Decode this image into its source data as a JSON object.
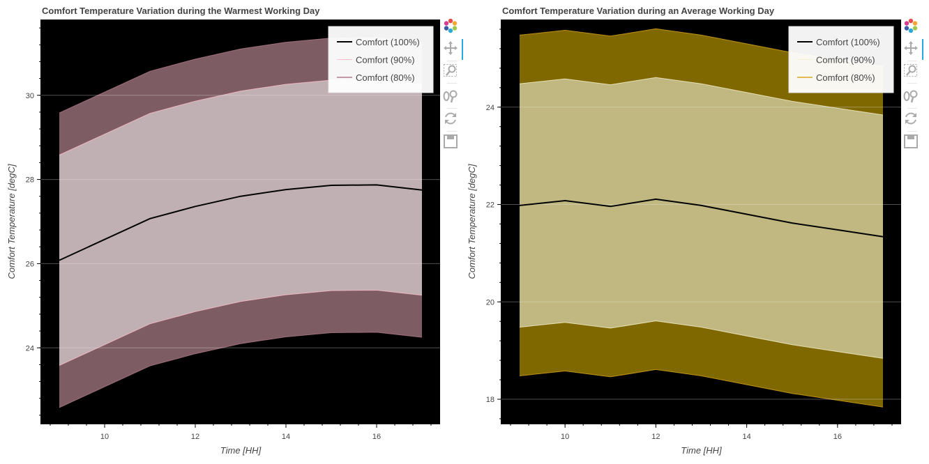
{
  "charts": [
    {
      "title": "Comfort Temperature Variation during the Warmest Working Day",
      "xlabel": "Time [HH]",
      "ylabel": "Comfort Temperature [degC]",
      "legend": [
        "Comfort (100%)",
        "Comfort (90%)",
        "Comfort (80%)"
      ]
    },
    {
      "title": "Comfort Temperature Variation during an Average Working Day",
      "xlabel": "Time [HH]",
      "ylabel": "Comfort Temperature [degC]",
      "legend": [
        "Comfort (100%)",
        "Comfort (90%)",
        "Comfort (80%)"
      ]
    }
  ],
  "toolbar_icons": [
    "bokeh-logo-icon",
    "pan-icon",
    "box-zoom-icon",
    "wheel-zoom-icon",
    "reset-icon",
    "save-icon"
  ],
  "chart_data": [
    {
      "type": "area",
      "title": "Comfort Temperature Variation during the Warmest Working Day",
      "xlabel": "Time [HH]",
      "ylabel": "Comfort Temperature [degC]",
      "xlim": [
        8.6,
        17.4
      ],
      "ylim": [
        22.2,
        31.8
      ],
      "xticks": [
        10,
        12,
        14,
        16
      ],
      "yticks": [
        24,
        26,
        28,
        30
      ],
      "grid": true,
      "legend_position": "top-right",
      "background": "#000000",
      "x": [
        9,
        11,
        12,
        13,
        14,
        15,
        16,
        17
      ],
      "series": [
        {
          "name": "Comfort (100%)",
          "color": "#000000",
          "values": [
            26.08,
            27.07,
            27.36,
            27.6,
            27.76,
            27.86,
            27.87,
            27.75
          ]
        },
        {
          "name": "Comfort (90%)",
          "color": "#ffc0cb",
          "fill": "#c0b0b4",
          "lower": [
            23.58,
            24.57,
            24.86,
            25.1,
            25.26,
            25.36,
            25.37,
            25.25
          ],
          "upper": [
            28.58,
            29.57,
            29.86,
            30.1,
            30.26,
            30.36,
            30.37,
            30.25
          ]
        },
        {
          "name": "Comfort (80%)",
          "color": "#b07a88",
          "fill": "#7e5c63",
          "lower": [
            22.58,
            23.57,
            23.86,
            24.1,
            24.26,
            24.36,
            24.37,
            24.25
          ],
          "upper": [
            29.58,
            30.57,
            30.86,
            31.1,
            31.26,
            31.36,
            31.37,
            31.25
          ]
        }
      ]
    },
    {
      "type": "area",
      "title": "Comfort Temperature Variation during an Average Working Day",
      "xlabel": "Time [HH]",
      "ylabel": "Comfort Temperature [degC]",
      "xlim": [
        8.6,
        17.4
      ],
      "ylim": [
        17.5,
        25.8
      ],
      "xticks": [
        10,
        12,
        14,
        16
      ],
      "yticks": [
        18,
        20,
        22,
        24
      ],
      "grid": true,
      "legend_position": "top-right",
      "background": "#000000",
      "x": [
        9,
        10,
        11,
        12,
        13,
        14,
        15,
        16,
        17
      ],
      "series": [
        {
          "name": "Comfort (100%)",
          "color": "#000000",
          "values": [
            21.98,
            22.08,
            21.96,
            22.11,
            21.98,
            21.8,
            21.62,
            21.48,
            21.34
          ]
        },
        {
          "name": "Comfort (90%)",
          "color": "#f5f0d0",
          "fill": "#c0b880",
          "lower": [
            19.48,
            19.58,
            19.46,
            19.61,
            19.48,
            19.3,
            19.12,
            18.98,
            18.84
          ],
          "upper": [
            24.48,
            24.58,
            24.46,
            24.61,
            24.48,
            24.3,
            24.12,
            23.98,
            23.84
          ]
        },
        {
          "name": "Comfort (80%)",
          "color": "#daa520",
          "fill": "#806800",
          "lower": [
            18.48,
            18.58,
            18.46,
            18.61,
            18.48,
            18.3,
            18.12,
            17.98,
            17.84
          ],
          "upper": [
            25.48,
            25.58,
            25.46,
            25.61,
            25.48,
            25.3,
            25.12,
            24.98,
            24.84
          ]
        }
      ]
    }
  ]
}
